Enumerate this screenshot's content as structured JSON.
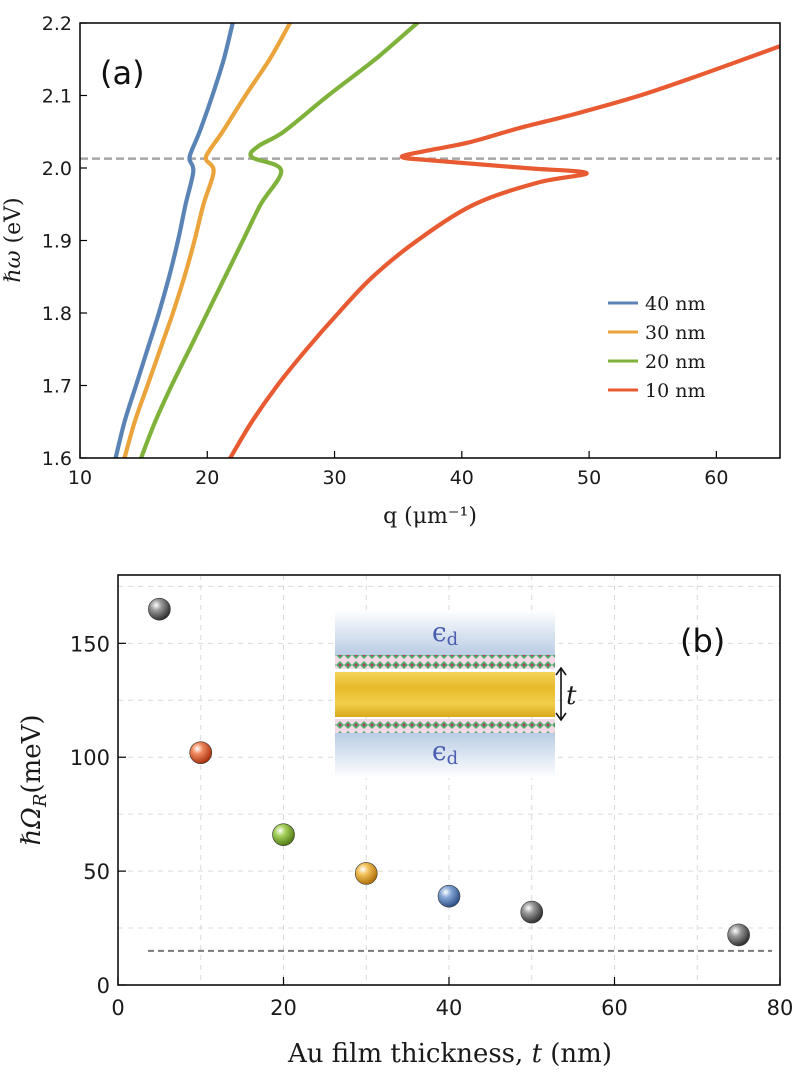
{
  "chart_data": [
    {
      "type": "line",
      "panel_label": "(a)",
      "xlabel": "q (μm⁻¹)",
      "xlabel_main": "q",
      "xlabel_unit": "(μm⁻¹)",
      "ylabel": "ℏω (eV)",
      "ylabel_main": "ℏω",
      "ylabel_unit": "(eV)",
      "xlim": [
        10,
        65
      ],
      "ylim": [
        1.6,
        2.2
      ],
      "xticks": [
        10,
        20,
        30,
        40,
        50,
        60
      ],
      "yticks": [
        1.6,
        1.7,
        1.8,
        1.9,
        2.0,
        2.1,
        2.2
      ],
      "ytick_labels": [
        "1.6",
        "1.7",
        "1.8",
        "1.9",
        "2.0",
        "2.1",
        "2.2"
      ],
      "reference_line": {
        "y": 2.013,
        "style": "dashed",
        "color": "#a6a6a6"
      },
      "legend_position": "lower-right",
      "series": [
        {
          "name": "40 nm",
          "color": "#5b84b6",
          "points": [
            [
              12.8,
              1.6
            ],
            [
              13.5,
              1.65
            ],
            [
              14.4,
              1.7
            ],
            [
              15.3,
              1.75
            ],
            [
              16.2,
              1.8
            ],
            [
              17.0,
              1.85
            ],
            [
              17.7,
              1.9
            ],
            [
              18.3,
              1.95
            ],
            [
              18.9,
              1.995
            ],
            [
              18.6,
              2.012
            ],
            [
              18.8,
              2.025
            ],
            [
              19.4,
              2.05
            ],
            [
              20.4,
              2.1
            ],
            [
              21.3,
              2.15
            ],
            [
              22.0,
              2.2
            ]
          ]
        },
        {
          "name": "30 nm",
          "color": "#eba43b",
          "points": [
            [
              13.5,
              1.6
            ],
            [
              14.3,
              1.65
            ],
            [
              15.3,
              1.7
            ],
            [
              16.3,
              1.75
            ],
            [
              17.3,
              1.8
            ],
            [
              18.2,
              1.85
            ],
            [
              19.0,
              1.9
            ],
            [
              19.7,
              1.95
            ],
            [
              20.5,
              1.995
            ],
            [
              19.9,
              2.012
            ],
            [
              20.2,
              2.025
            ],
            [
              21.2,
              2.05
            ],
            [
              23.0,
              2.1
            ],
            [
              24.9,
              2.15
            ],
            [
              26.5,
              2.2
            ]
          ]
        },
        {
          "name": "20 nm",
          "color": "#7fb23a",
          "points": [
            [
              14.8,
              1.6
            ],
            [
              15.9,
              1.65
            ],
            [
              17.2,
              1.7
            ],
            [
              18.6,
              1.75
            ],
            [
              20.0,
              1.8
            ],
            [
              21.4,
              1.85
            ],
            [
              22.8,
              1.9
            ],
            [
              24.2,
              1.95
            ],
            [
              25.8,
              1.997
            ],
            [
              23.5,
              2.015
            ],
            [
              24.0,
              2.03
            ],
            [
              26.0,
              2.05
            ],
            [
              29.5,
              2.1
            ],
            [
              33.2,
              2.15
            ],
            [
              36.5,
              2.2
            ]
          ]
        },
        {
          "name": "10 nm",
          "color": "#e85b32",
          "points": [
            [
              21.8,
              1.6
            ],
            [
              23.5,
              1.65
            ],
            [
              25.5,
              1.7
            ],
            [
              27.8,
              1.75
            ],
            [
              30.3,
              1.8
            ],
            [
              33.0,
              1.85
            ],
            [
              36.5,
              1.9
            ],
            [
              41.0,
              1.95
            ],
            [
              46.0,
              1.98
            ],
            [
              49.8,
              1.993
            ],
            [
              45.0,
              2.0
            ],
            [
              38.0,
              2.01
            ],
            [
              35.3,
              2.015
            ],
            [
              37.0,
              2.023
            ],
            [
              40.5,
              2.035
            ],
            [
              44.5,
              2.055
            ],
            [
              49.0,
              2.075
            ],
            [
              54.0,
              2.1
            ],
            [
              59.0,
              2.13
            ],
            [
              65.0,
              2.168
            ]
          ]
        }
      ]
    },
    {
      "type": "scatter",
      "panel_label": "(b)",
      "xlabel": "Au film thickness, t (nm)",
      "xlabel_main": "Au film thickness,",
      "xlabel_var": "t",
      "xlabel_unit": "(nm)",
      "ylabel": "ℏΩR (meV)",
      "ylabel_main": "ℏΩ",
      "ylabel_sub": "R",
      "ylabel_unit": "(meV)",
      "xlim": [
        0,
        80
      ],
      "ylim": [
        0,
        180
      ],
      "xticks": [
        0,
        20,
        40,
        60,
        80
      ],
      "yticks": [
        0,
        50,
        100,
        150
      ],
      "grid": true,
      "reference_line": {
        "y": 15,
        "style": "dashed",
        "color": "#7a7a7a"
      },
      "points": [
        {
          "x": 5,
          "y": 165,
          "color": "#555555"
        },
        {
          "x": 10,
          "y": 102,
          "color": "#e85b32"
        },
        {
          "x": 20,
          "y": 66,
          "color": "#7fb23a"
        },
        {
          "x": 30,
          "y": 49,
          "color": "#eba43b"
        },
        {
          "x": 40,
          "y": 39,
          "color": "#5b84b6"
        },
        {
          "x": 50,
          "y": 32,
          "color": "#555555"
        },
        {
          "x": 75,
          "y": 22,
          "color": "#555555"
        }
      ],
      "inset": {
        "top_label": "ϵd",
        "bottom_label": "ϵd",
        "label_main": "ϵ",
        "label_sub": "d",
        "thickness_label": "t"
      }
    }
  ]
}
